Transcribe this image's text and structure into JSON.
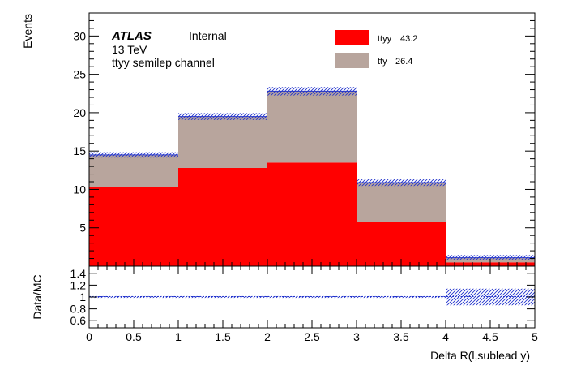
{
  "chart_data": {
    "type": "bar",
    "stacked": true,
    "x_bin_edges": [
      0,
      1,
      2,
      3,
      4,
      5
    ],
    "series": [
      {
        "name": "ttyy",
        "legend_value": "43.2",
        "color": "#ff0000",
        "values": [
          10.3,
          12.8,
          13.5,
          5.8,
          0.5
        ]
      },
      {
        "name": "tty",
        "legend_value": "26.4",
        "color": "#b8a59d",
        "values": [
          4.2,
          6.7,
          9.3,
          5.1,
          0.6
        ]
      }
    ],
    "mc_uncertainty": [
      0.35,
      0.45,
      0.55,
      0.45,
      0.35
    ],
    "ratio": {
      "values": [
        1,
        1,
        1,
        1,
        1
      ],
      "band_low": [
        0.985,
        0.985,
        0.985,
        0.985,
        0.86
      ],
      "band_high": [
        1.015,
        1.015,
        1.015,
        1.015,
        1.14
      ],
      "ylim": [
        0.48,
        1.52
      ],
      "yticks": [
        "0.6",
        "0.8",
        "1",
        "1.2",
        "1.4"
      ]
    },
    "xlim": [
      0,
      5
    ],
    "ylim": [
      0,
      33
    ],
    "xticks": [
      "0",
      "0.5",
      "1",
      "1.5",
      "2",
      "2.5",
      "3",
      "3.5",
      "4",
      "4.5",
      "5"
    ],
    "yticks": [
      "5",
      "10",
      "15",
      "20",
      "25",
      "30"
    ],
    "xlabel": "Delta R(l,sublead y)",
    "ylabel": "Events",
    "ratio_ylabel": "Data/MC",
    "legend_position": "top-right",
    "hatch_color": "#2233cc"
  },
  "labels": {
    "atlas": "ATLAS",
    "internal": "Internal",
    "energy": "13 TeV",
    "channel": "ttyy semilep channel"
  }
}
